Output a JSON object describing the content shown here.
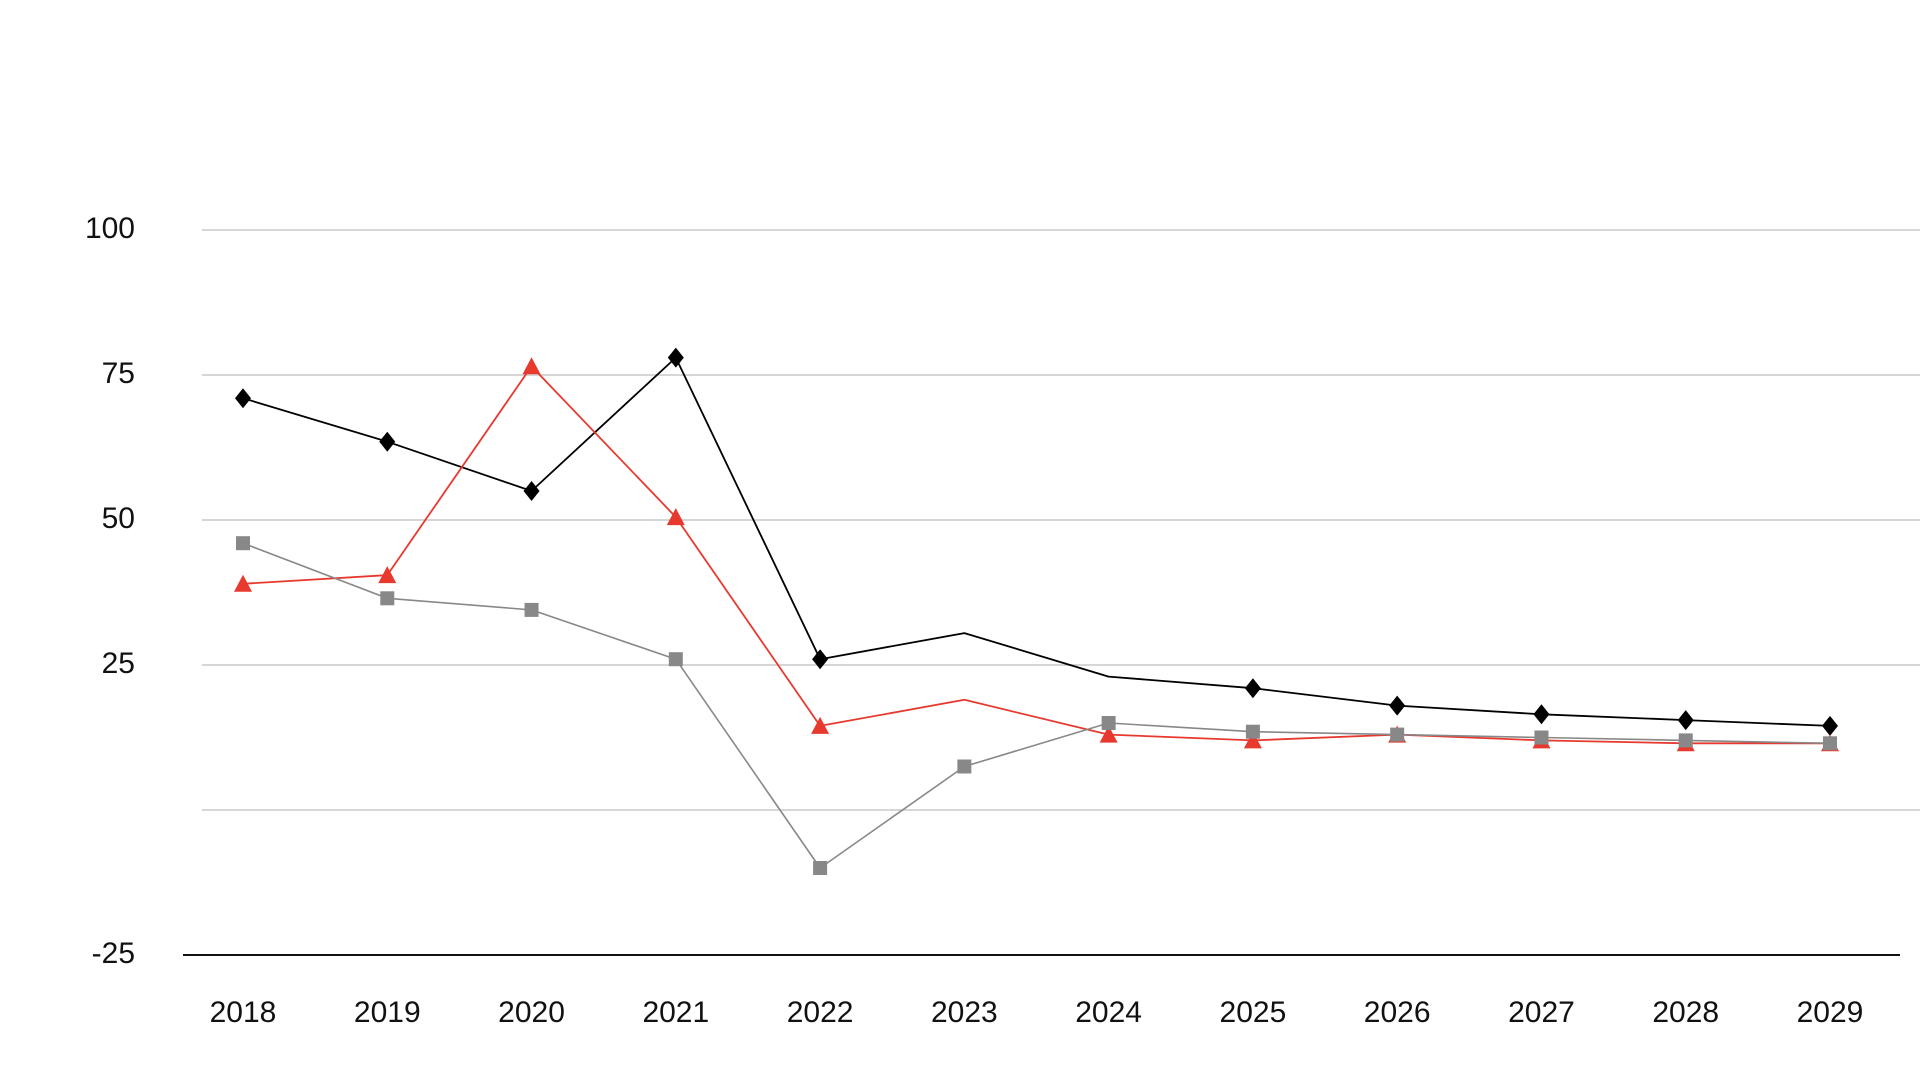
{
  "chart_data": {
    "type": "line",
    "title": "",
    "xlabel": "",
    "ylabel": "",
    "ylim": [
      -25,
      100
    ],
    "yticks": [
      "100",
      "75",
      "50",
      "25",
      "-25"
    ],
    "categories": [
      "2018",
      "2019",
      "2020",
      "2021",
      "2022",
      "2023",
      "2024",
      "2025",
      "2026",
      "2027",
      "2028",
      "2029"
    ],
    "grid": true,
    "legend": "none",
    "series": [
      {
        "name": "Black",
        "color": "#000000",
        "marker": "diamond",
        "markers_hidden_at": [
          "2023",
          "2024"
        ],
        "values": [
          71,
          63.5,
          55,
          78,
          26,
          30.5,
          23,
          21,
          18,
          16.5,
          15.5,
          14.5
        ]
      },
      {
        "name": "Red",
        "color": "#e8392f",
        "marker": "triangle",
        "markers_hidden_at": [
          "2023"
        ],
        "values": [
          39,
          40.5,
          76.5,
          50.5,
          14.5,
          19,
          13,
          12,
          13,
          12,
          11.5,
          11.5
        ]
      },
      {
        "name": "Gray",
        "color": "#888888",
        "marker": "square",
        "markers_hidden_at": [],
        "values": [
          46,
          36.5,
          34.5,
          26,
          -10,
          7.5,
          15,
          13.5,
          13,
          12.5,
          12,
          11.5
        ]
      }
    ]
  }
}
